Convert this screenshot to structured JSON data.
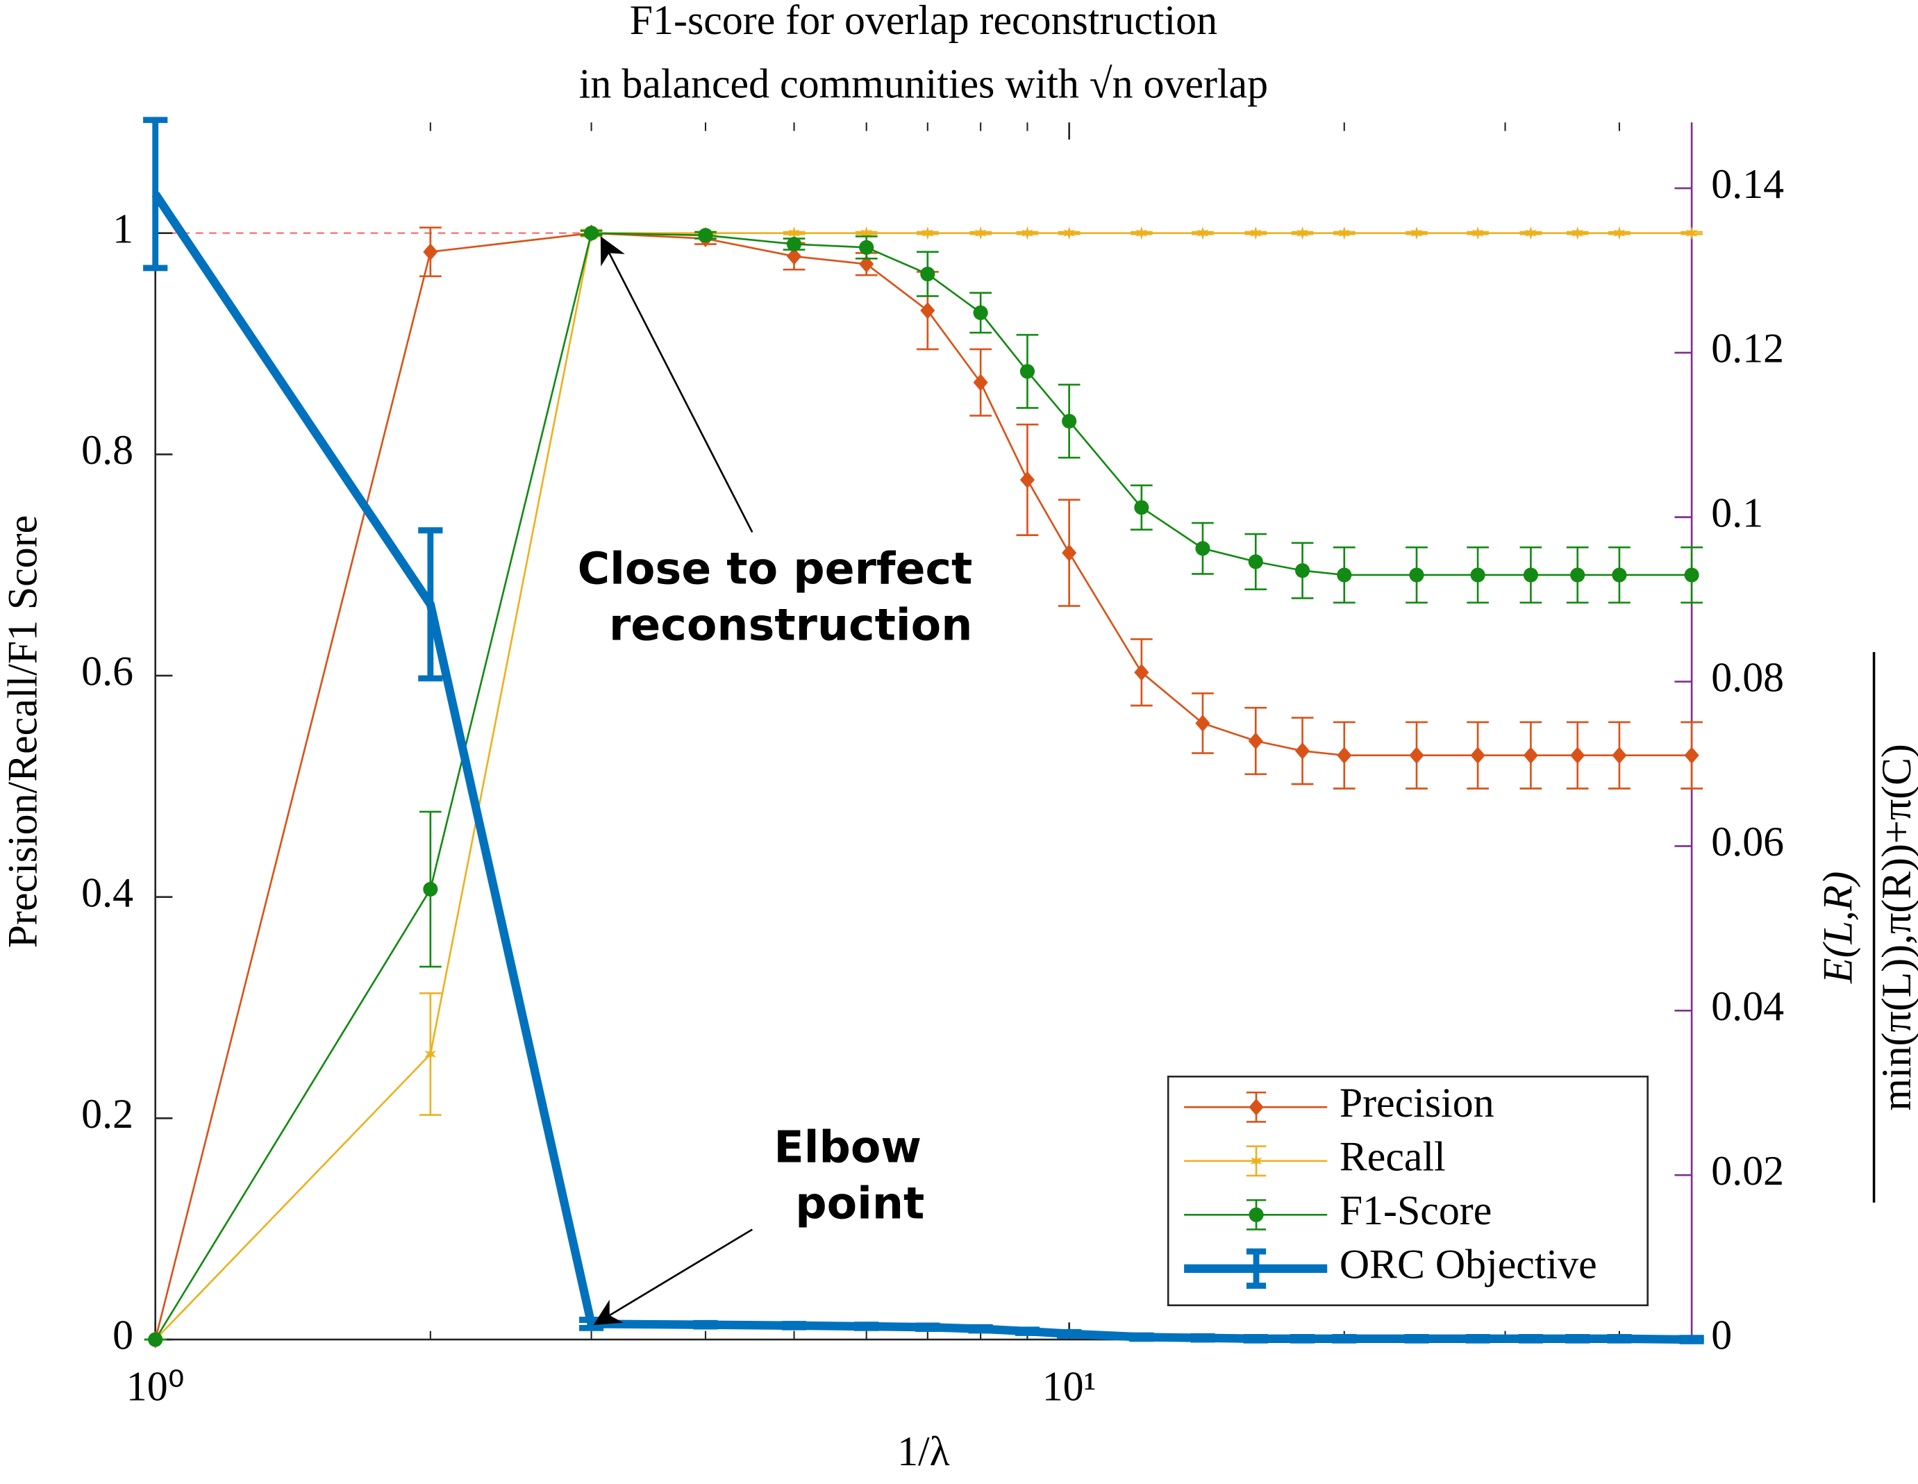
{
  "chart_data": {
    "type": "line",
    "title": [
      "F1-score for overlap reconstruction",
      "in balanced communities with √n overlap"
    ],
    "xlabel": "1/λ",
    "ylabel": "Precision/Recall/F1 Score",
    "y2label": {
      "numerator": "E(L,R)",
      "denominator": "min(π(L)),π(R))+π(C)"
    },
    "xscale": "log",
    "xlim": [
      1,
      48
    ],
    "xticks": [
      {
        "value": 1,
        "label": "10⁰"
      },
      {
        "value": 10,
        "label": "10¹"
      }
    ],
    "xminorticks": [
      2,
      3,
      4,
      5,
      6,
      7,
      8,
      9,
      20,
      30,
      40
    ],
    "ylim": [
      0,
      1.1
    ],
    "yticks": [
      0,
      0.2,
      0.4,
      0.6,
      0.8,
      1
    ],
    "y2lim": [
      0,
      0.148
    ],
    "y2ticks": [
      0,
      0.02,
      0.04,
      0.06,
      0.08,
      0.1,
      0.12,
      0.14
    ],
    "y2color": "#7e2f8e",
    "reference_line": {
      "value": 1,
      "color": "#ff6b6b"
    },
    "legend": "lower right",
    "x": [
      1,
      2,
      3,
      4,
      5,
      6,
      7,
      8,
      9,
      10,
      12,
      14,
      16,
      18,
      20,
      24,
      28,
      32,
      36,
      40,
      48
    ],
    "series": [
      {
        "name": "Precision",
        "color": "#d95319",
        "marker": "diamond",
        "width": 1.5,
        "values": [
          0,
          0.983,
          1.0,
          0.995,
          0.979,
          0.972,
          0.93,
          0.865,
          0.777,
          0.711,
          0.603,
          0.557,
          0.541,
          0.532,
          0.528,
          0.528,
          0.528,
          0.528,
          0.528,
          0.528,
          0.528
        ],
        "errors": [
          0,
          0.022,
          0.003,
          0.005,
          0.012,
          0.01,
          0.035,
          0.03,
          0.05,
          0.048,
          0.03,
          0.027,
          0.03,
          0.03,
          0.03,
          0.03,
          0.03,
          0.03,
          0.03,
          0.03,
          0.03
        ]
      },
      {
        "name": "Recall",
        "color": "#edb120",
        "marker": "star",
        "width": 1.5,
        "values": [
          0,
          0.258,
          1,
          1,
          1,
          1,
          1,
          1,
          1,
          1,
          1,
          1,
          1,
          1,
          1,
          1,
          1,
          1,
          1,
          1,
          1
        ],
        "errors": [
          0,
          0.055,
          0.003,
          0.001,
          0.001,
          0.001,
          0.001,
          0.001,
          0.001,
          0.001,
          0.001,
          0.001,
          0.001,
          0.001,
          0.001,
          0.001,
          0.001,
          0.001,
          0.001,
          0.001,
          0.001
        ]
      },
      {
        "name": "F1-Score",
        "color": "#138a13",
        "marker": "circle",
        "width": 1.5,
        "values": [
          0,
          0.407,
          1.0,
          0.998,
          0.99,
          0.987,
          0.963,
          0.928,
          0.875,
          0.83,
          0.752,
          0.715,
          0.703,
          0.695,
          0.691,
          0.691,
          0.691,
          0.691,
          0.691,
          0.691,
          0.691
        ],
        "errors": [
          0,
          0.07,
          0.002,
          0.003,
          0.005,
          0.01,
          0.02,
          0.018,
          0.033,
          0.033,
          0.02,
          0.023,
          0.025,
          0.025,
          0.025,
          0.025,
          0.025,
          0.025,
          0.025,
          0.025,
          0.025
        ]
      },
      {
        "name": "ORC Objective",
        "color": "#0072bd",
        "marker": "none",
        "width": 7,
        "axis": "y2",
        "values": [
          0.1393,
          0.0894,
          0.0019,
          0.0018,
          0.0017,
          0.0016,
          0.0015,
          0.0013,
          0.001,
          0.0007,
          0.0003,
          0.0002,
          0.0001,
          0.0001,
          0.0001,
          0.0001,
          0.0001,
          0.0001,
          0.0001,
          0.0001,
          0
        ],
        "errors": [
          0.009,
          0.009,
          0.0005,
          0.0002,
          0.0002,
          0.0002,
          0.0002,
          0.0002,
          0.0002,
          0.0002,
          0.0002,
          0.0002,
          0.0002,
          0.0002,
          0.0002,
          0.0002,
          0.0002,
          0.0002,
          0.0002,
          0.0002,
          0.0002
        ]
      }
    ],
    "annotations": [
      {
        "lines": [
          "Close to perfect",
          "reconstruction"
        ]
      },
      {
        "lines": [
          "Elbow",
          "point"
        ]
      }
    ]
  }
}
